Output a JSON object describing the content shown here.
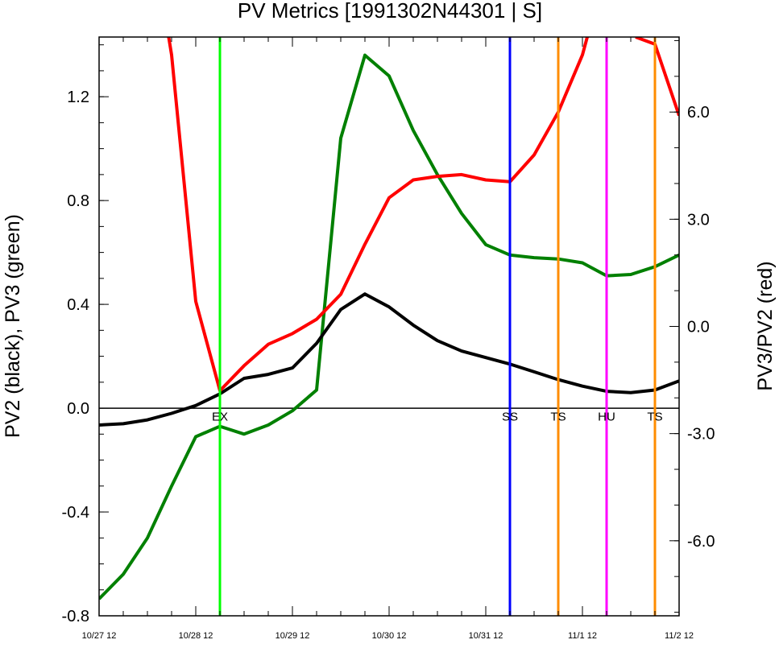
{
  "chart_data": {
    "type": "line",
    "title": "PV Metrics [1991302N44301 | S]",
    "ylabel_left": "PV2 (black), PV3 (green)",
    "ylabel_right": "PV3/PV2 (red)",
    "x_ticks": [
      "10/27 12",
      "10/28 12",
      "10/29 12",
      "10/30 12",
      "10/31 12",
      "11/1 12",
      "11/2 12"
    ],
    "x_range_days": [
      0,
      6
    ],
    "ylim_left": [
      -0.8,
      1.43
    ],
    "ylim_right": [
      -8.1,
      8.1
    ],
    "yticks_left": [
      -0.8,
      -0.4,
      0.0,
      0.4,
      0.8,
      1.2
    ],
    "yticks_left_labels": [
      "-0.8",
      "-0.4",
      "0.0",
      "0.4",
      "0.8",
      "1.2"
    ],
    "yticks_right": [
      -6.0,
      -3.0,
      0.0,
      3.0,
      6.0
    ],
    "yticks_right_labels": [
      "-6.0",
      "-3.0",
      "0.0",
      "3.0",
      "6.0"
    ],
    "zero_line": 0.0,
    "series": [
      {
        "key": "pv2",
        "color": "#000000",
        "axis": "left",
        "x": [
          0,
          0.25,
          0.5,
          0.75,
          1.0,
          1.25,
          1.5,
          1.75,
          2.0,
          2.25,
          2.5,
          2.75,
          3.0,
          3.25,
          3.5,
          3.75,
          4.0,
          4.25,
          4.5,
          4.75,
          5.0,
          5.25,
          5.5,
          5.75,
          6.0
        ],
        "values": [
          -0.065,
          -0.06,
          -0.045,
          -0.02,
          0.01,
          0.055,
          0.115,
          0.13,
          0.155,
          0.25,
          0.38,
          0.44,
          0.39,
          0.32,
          0.26,
          0.22,
          0.195,
          0.17,
          0.14,
          0.11,
          0.085,
          0.065,
          0.06,
          0.07,
          0.105
        ]
      },
      {
        "key": "pv3",
        "color": "#008000",
        "axis": "left",
        "x": [
          0,
          0.25,
          0.5,
          0.75,
          1.0,
          1.25,
          1.5,
          1.75,
          2.0,
          2.25,
          2.5,
          2.75,
          3.0,
          3.25,
          3.5,
          3.75,
          4.0,
          4.25,
          4.5,
          4.75,
          5.0,
          5.25,
          5.5,
          5.75,
          6.0
        ],
        "values": [
          -0.735,
          -0.64,
          -0.5,
          -0.3,
          -0.11,
          -0.07,
          -0.1,
          -0.065,
          -0.01,
          0.07,
          1.04,
          1.36,
          1.28,
          1.07,
          0.9,
          0.75,
          0.63,
          0.59,
          0.58,
          0.575,
          0.56,
          0.51,
          0.515,
          0.545,
          0.59
        ]
      },
      {
        "key": "ratio",
        "color": "#ff0000",
        "axis": "right",
        "x": [
          0.72,
          0.75,
          1.0,
          1.25,
          1.5,
          1.75,
          2.0,
          2.25,
          2.5,
          2.75,
          3.0,
          3.25,
          3.5,
          3.75,
          4.0,
          4.25,
          4.5,
          4.75,
          5.0,
          5.05,
          5.5,
          5.55,
          5.75,
          6.0
        ],
        "values": [
          8.1,
          7.6,
          0.7,
          -1.8,
          -1.1,
          -0.5,
          -0.2,
          0.2,
          0.9,
          2.3,
          3.6,
          4.1,
          4.2,
          4.25,
          4.1,
          4.05,
          4.8,
          6.0,
          7.6,
          8.1,
          null,
          8.1,
          7.9,
          5.9
        ]
      }
    ],
    "markers": [
      {
        "x": 1.25,
        "label": "EX",
        "color": "#00ff00"
      },
      {
        "x": 4.25,
        "label": "SS",
        "color": "#0000ff"
      },
      {
        "x": 4.75,
        "label": "TS",
        "color": "#ff8c00"
      },
      {
        "x": 5.25,
        "label": "HU",
        "color": "#ff00ff"
      },
      {
        "x": 5.75,
        "label": "TS",
        "color": "#ff8c00"
      }
    ]
  }
}
